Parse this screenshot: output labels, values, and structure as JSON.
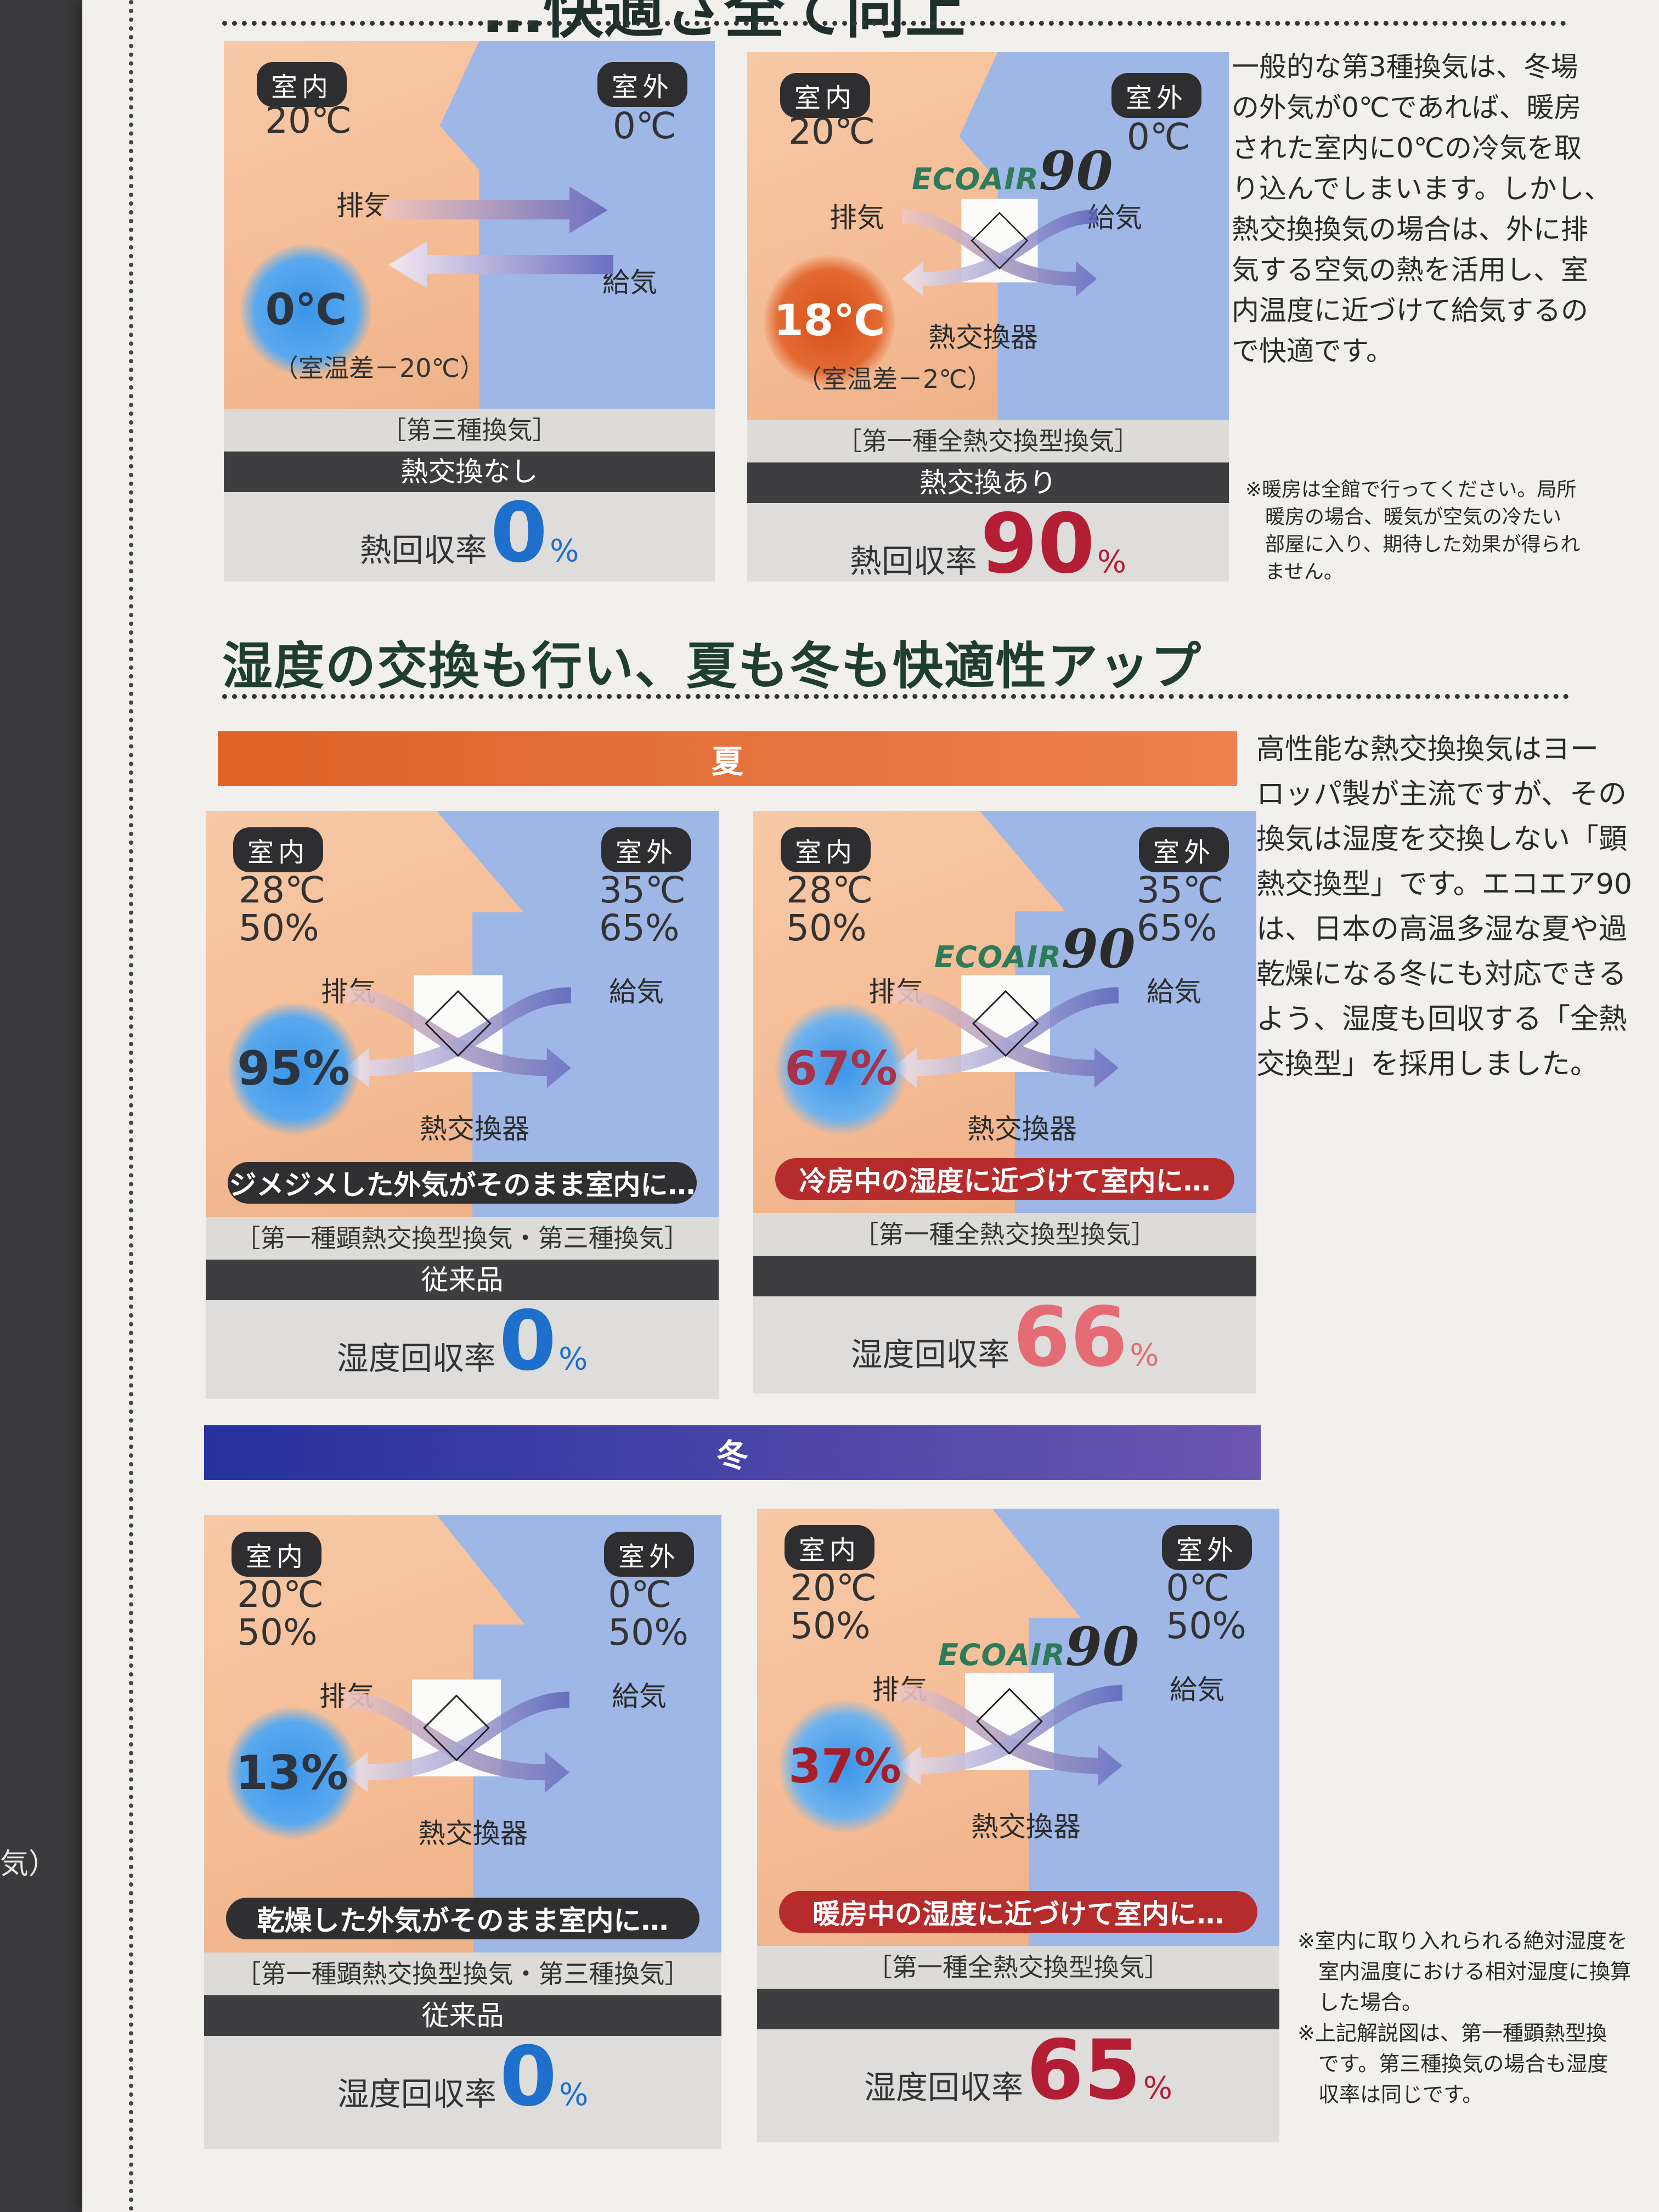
{
  "left_fragment": "気）",
  "top_heading": "…快適さ全て向上",
  "section_heading": "湿度の交換も行い、夏も冬も快適性アップ",
  "season_summer": "夏",
  "season_winter": "冬",
  "labels": {
    "indoor": "室内",
    "outdoor": "室外",
    "exhaust": "排気",
    "supply": "給気",
    "hx": "熱交換器",
    "heat_rate": "熱回収率",
    "humidity_rate": "湿度回収率",
    "percent": "%"
  },
  "logo": {
    "text": "ECOAIR",
    "num": "90"
  },
  "top_panels": [
    {
      "in_temp": "20℃",
      "out_temp": "0℃",
      "circle": "0℃",
      "circle_sub": "（室温差－20℃）",
      "type": "［第三種換気］",
      "desc": "熱交換なし",
      "rate": "0"
    },
    {
      "in_temp": "20℃",
      "out_temp": "0℃",
      "circle": "18℃",
      "circle_sub": "（室温差－2℃）",
      "type": "［第一種全熱交換型換気］",
      "desc": "熱交換あり",
      "rate": "90"
    }
  ],
  "summer_panels": [
    {
      "in_vals": "28℃\n50%",
      "out_vals": "35℃\n65%",
      "circle": "95%",
      "pill": "ジメジメした外気がそのまま室内に…",
      "type": "［第一種顕熱交換型換気・第三種換気］",
      "desc": "従来品",
      "rate": "0"
    },
    {
      "in_vals": "28℃\n50%",
      "out_vals": "35℃\n65%",
      "circle": "67%",
      "pill": "冷房中の湿度に近づけて室内に…",
      "type": "［第一種全熱交換型換気］",
      "desc": "",
      "rate": "66"
    }
  ],
  "winter_panels": [
    {
      "in_vals": "20℃\n50%",
      "out_vals": "0℃\n50%",
      "circle": "13%",
      "pill": "乾燥した外気がそのまま室内に…",
      "type": "［第一種顕熱交換型換気・第三種換気］",
      "desc": "従来品",
      "rate": "0"
    },
    {
      "in_vals": "20℃\n50%",
      "out_vals": "0℃\n50%",
      "circle": "37%",
      "pill": "暖房中の湿度に近づけて室内に…",
      "type": "［第一種全熱交換型換気］",
      "desc": "",
      "rate": "65"
    }
  ],
  "text_top": [
    "一般的な第3種換気は、冬場",
    "の外気が0℃であれば、暖房",
    "された室内に0℃の冷気を取",
    "り込んでしまいます。しかし、",
    "熱交換換気の場合は、外に排",
    "気する空気の熱を活用し、室",
    "内温度に近づけて給気するの",
    "で快適です。"
  ],
  "note_top": [
    "※暖房は全館で行ってください。局所",
    "　暖房の場合、暖気が空気の冷たい",
    "　部屋に入り、期待した効果が得られ",
    "　ません。"
  ],
  "text_mid": [
    "高性能な熱交換換気はヨー",
    "ロッパ製が主流ですが、その",
    "換気は湿度を交換しない「顕",
    "熱交換型」です。エコエア90",
    "は、日本の高温多湿な夏や過",
    "乾燥になる冬にも対応できる",
    "よう、湿度も回収する「全熱",
    "交換型」を採用しました。"
  ],
  "note_bottom": [
    "※室内に取り入れられる絶対湿度を",
    "　室内温度における相対湿度に換算",
    "　した場合。",
    "※上記解説図は、第一種顕熱型換",
    "　です。第三種換気の場合も湿度",
    "　収率は同じです。"
  ]
}
